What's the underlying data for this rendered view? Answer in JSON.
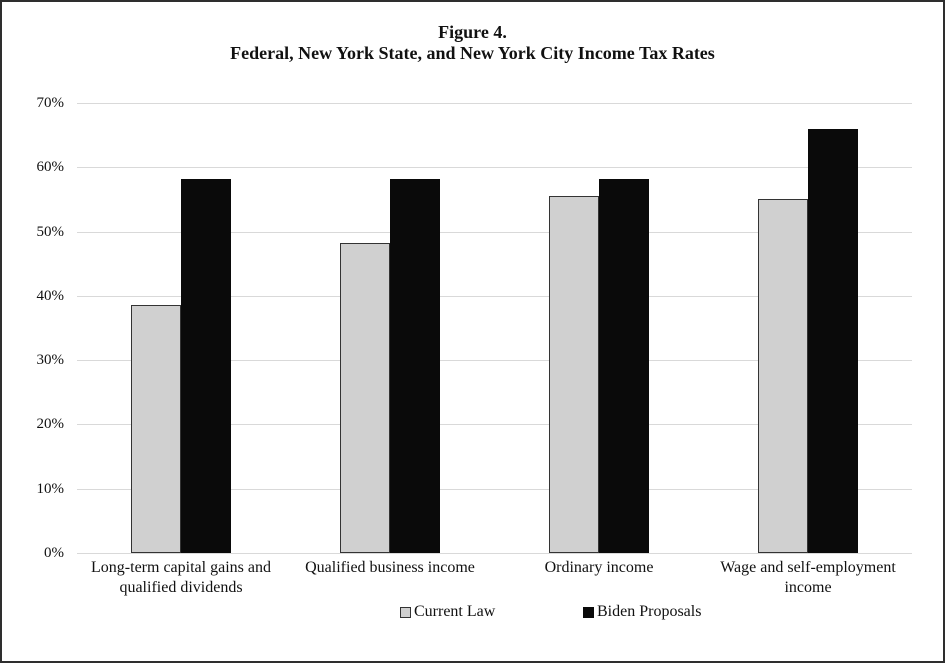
{
  "figure": {
    "title_line1": "Figure 4.",
    "title_line2": "Federal, New York State, and New York City Income Tax Rates"
  },
  "chart_data": {
    "type": "bar",
    "title": "Figure 4. Federal, New York State, and New York City Income Tax Rates",
    "categories": [
      "Long-term capital gains and qualified dividends",
      "Qualified business income",
      "Ordinary income",
      "Wage and self-employment income"
    ],
    "category_label_lines": [
      [
        "Long-term capital gains and",
        "qualified dividends"
      ],
      [
        "Qualified business income"
      ],
      [
        "Ordinary income"
      ],
      [
        "Wage and self-employment",
        "income"
      ]
    ],
    "series": [
      {
        "name": "Current Law",
        "values": [
          38.6,
          48.2,
          55.6,
          55.0
        ],
        "fill": "#d0d0d0",
        "border": "#333333"
      },
      {
        "name": "Biden Proposals",
        "values": [
          58.2,
          58.2,
          58.2,
          65.9
        ],
        "fill": "#0a0a0a",
        "border": "#0a0a0a"
      }
    ],
    "y_axis": {
      "min": 0,
      "max": 70,
      "step": 10,
      "unit": "%",
      "tick_labels": [
        "0%",
        "10%",
        "20%",
        "30%",
        "40%",
        "50%",
        "60%",
        "70%"
      ]
    },
    "x_axis": {
      "label": ""
    },
    "grid": "horizontal",
    "legend": {
      "position": "bottom",
      "entries": [
        "Current Law",
        "Biden Proposals"
      ]
    },
    "colors": {
      "current_law_fill": "#d0d0d0",
      "current_law_border": "#333333",
      "biden_proposals_fill": "#0a0a0a",
      "gridline": "#d9d9d9",
      "text": "#111111",
      "frame_border": "#2e2e2e",
      "background": "#ffffff"
    }
  }
}
